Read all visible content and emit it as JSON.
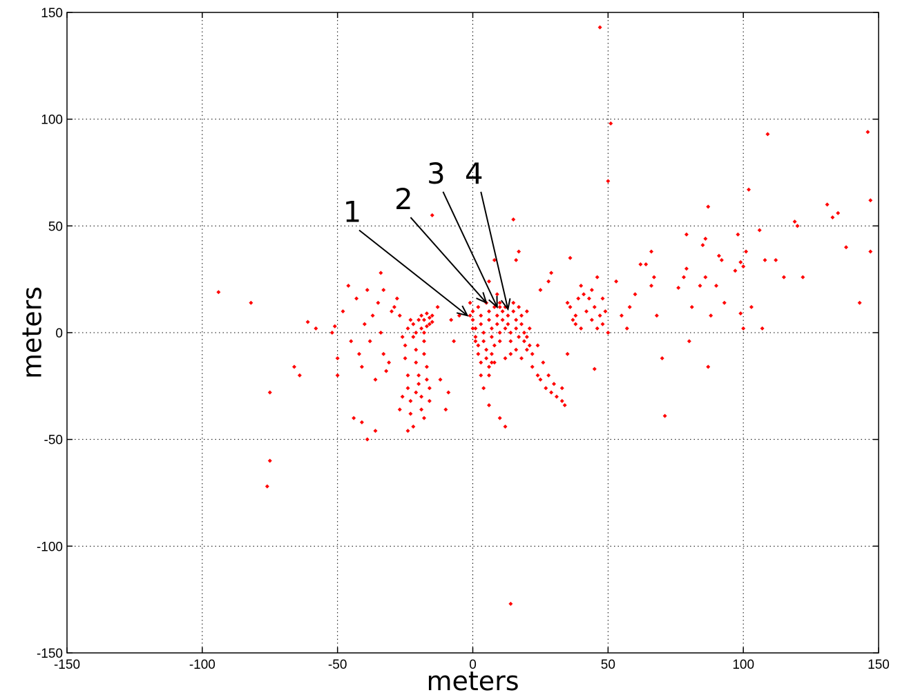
{
  "chart_data": {
    "type": "scatter",
    "xlabel": "meters",
    "ylabel": "meters",
    "xlim": [
      -150,
      150
    ],
    "ylim": [
      -150,
      150
    ],
    "xticks": [
      -150,
      -100,
      -50,
      0,
      50,
      100,
      150
    ],
    "yticks": [
      -150,
      -100,
      -50,
      0,
      50,
      100,
      150
    ],
    "grid": true,
    "marker_color": "#ff0000",
    "series": [
      {
        "points": [
          [
            -94,
            19
          ],
          [
            -82,
            14
          ],
          [
            -61,
            5
          ],
          [
            -58,
            2
          ],
          [
            -52,
            0
          ],
          [
            -51,
            3
          ],
          [
            -50,
            -12
          ],
          [
            -50,
            -20
          ],
          [
            -48,
            10
          ],
          [
            -46,
            22
          ],
          [
            -45,
            -4
          ],
          [
            -44,
            -40
          ],
          [
            -43,
            16
          ],
          [
            -42,
            -10
          ],
          [
            -41,
            -16
          ],
          [
            -40,
            4
          ],
          [
            -39,
            20
          ],
          [
            -38,
            -4
          ],
          [
            -37,
            8
          ],
          [
            -36,
            -22
          ],
          [
            -35,
            14
          ],
          [
            -34,
            28
          ],
          [
            -34,
            0
          ],
          [
            -33,
            -10
          ],
          [
            -33,
            20
          ],
          [
            -32,
            -18
          ],
          [
            -31,
            -14
          ],
          [
            -30,
            10
          ],
          [
            -29,
            12
          ],
          [
            -28,
            16
          ],
          [
            -27,
            8
          ],
          [
            -26,
            -2
          ],
          [
            -41,
            -42
          ],
          [
            -39,
            -50
          ],
          [
            -36,
            -46
          ],
          [
            -66,
            -16
          ],
          [
            -64,
            -20
          ],
          [
            -75,
            -28
          ],
          [
            -75,
            -60
          ],
          [
            -76,
            -72
          ],
          [
            -25,
            -6
          ],
          [
            -25,
            -12
          ],
          [
            -24,
            -20
          ],
          [
            -24,
            -26
          ],
          [
            -23,
            -32
          ],
          [
            -23,
            -38
          ],
          [
            -22,
            -44
          ],
          [
            -21,
            -28
          ],
          [
            -22,
            4
          ],
          [
            -22,
            -2
          ],
          [
            -21,
            -8
          ],
          [
            -21,
            -14
          ],
          [
            -20,
            -20
          ],
          [
            -20,
            -24
          ],
          [
            -19,
            -30
          ],
          [
            -19,
            -36
          ],
          [
            -18,
            -40
          ],
          [
            -19,
            2
          ],
          [
            -18,
            -4
          ],
          [
            -18,
            -10
          ],
          [
            -17,
            -16
          ],
          [
            -17,
            -22
          ],
          [
            -16,
            -26
          ],
          [
            -16,
            -32
          ],
          [
            -20,
            6
          ],
          [
            -19,
            8
          ],
          [
            -18,
            6
          ],
          [
            -17,
            9
          ],
          [
            -16,
            7
          ],
          [
            -15,
            8
          ],
          [
            -16,
            4
          ],
          [
            -17,
            3
          ],
          [
            -15,
            5
          ],
          [
            -18,
            0
          ],
          [
            -21,
            0
          ],
          [
            -23,
            6
          ],
          [
            -24,
            2
          ],
          [
            -26,
            -30
          ],
          [
            -27,
            -36
          ],
          [
            -24,
            -46
          ],
          [
            -12,
            -22
          ],
          [
            -10,
            -36
          ],
          [
            -9,
            -28
          ],
          [
            -13,
            12
          ],
          [
            -8,
            6
          ],
          [
            -7,
            -4
          ],
          [
            -5,
            8
          ],
          [
            -15,
            55
          ],
          [
            -1,
            14
          ],
          [
            0,
            10
          ],
          [
            0,
            6
          ],
          [
            1,
            2
          ],
          [
            1,
            -2
          ],
          [
            2,
            -6
          ],
          [
            2,
            -10
          ],
          [
            3,
            -14
          ],
          [
            -1,
            8
          ],
          [
            0,
            2
          ],
          [
            1,
            -4
          ],
          [
            2,
            12
          ],
          [
            3,
            8
          ],
          [
            3,
            4
          ],
          [
            4,
            0
          ],
          [
            4,
            -4
          ],
          [
            5,
            -8
          ],
          [
            5,
            -12
          ],
          [
            6,
            -16
          ],
          [
            6,
            -20
          ],
          [
            7,
            -14
          ],
          [
            7,
            -10
          ],
          [
            3,
            -20
          ],
          [
            4,
            -26
          ],
          [
            5,
            14
          ],
          [
            6,
            10
          ],
          [
            6,
            6
          ],
          [
            7,
            2
          ],
          [
            7,
            -2
          ],
          [
            8,
            -6
          ],
          [
            8,
            12
          ],
          [
            9,
            8
          ],
          [
            9,
            4
          ],
          [
            10,
            0
          ],
          [
            10,
            -4
          ],
          [
            10,
            14
          ],
          [
            11,
            10
          ],
          [
            11,
            6
          ],
          [
            12,
            2
          ],
          [
            12,
            12
          ],
          [
            13,
            8
          ],
          [
            13,
            4
          ],
          [
            14,
            0
          ],
          [
            14,
            -4
          ],
          [
            15,
            14
          ],
          [
            15,
            10
          ],
          [
            16,
            6
          ],
          [
            16,
            2
          ],
          [
            17,
            -2
          ],
          [
            17,
            12
          ],
          [
            18,
            8
          ],
          [
            18,
            4
          ],
          [
            19,
            0
          ],
          [
            19,
            -4
          ],
          [
            20,
            -8
          ],
          [
            20,
            -2
          ],
          [
            21,
            2
          ],
          [
            21,
            -6
          ],
          [
            22,
            -10
          ],
          [
            20,
            10
          ],
          [
            16,
            -8
          ],
          [
            14,
            -10
          ],
          [
            12,
            -12
          ],
          [
            18,
            -12
          ],
          [
            22,
            -16
          ],
          [
            24,
            -20
          ],
          [
            25,
            -22
          ],
          [
            27,
            -26
          ],
          [
            29,
            -28
          ],
          [
            30,
            -24
          ],
          [
            31,
            -30
          ],
          [
            33,
            -26
          ],
          [
            33,
            -32
          ],
          [
            34,
            -34
          ],
          [
            28,
            -20
          ],
          [
            26,
            -14
          ],
          [
            24,
            -6
          ],
          [
            28,
            24
          ],
          [
            29,
            28
          ],
          [
            25,
            20
          ],
          [
            16,
            34
          ],
          [
            17,
            38
          ],
          [
            15,
            53
          ],
          [
            10,
            12
          ],
          [
            8,
            34
          ],
          [
            6,
            24
          ],
          [
            9,
            18
          ],
          [
            10,
            -40
          ],
          [
            12,
            -44
          ],
          [
            8,
            -14
          ],
          [
            6,
            -34
          ],
          [
            14,
            -127
          ],
          [
            36,
            35
          ],
          [
            38,
            4
          ],
          [
            36,
            12
          ],
          [
            35,
            14
          ],
          [
            37,
            6
          ],
          [
            39,
            16
          ],
          [
            40,
            22
          ],
          [
            41,
            18
          ],
          [
            42,
            10
          ],
          [
            43,
            16
          ],
          [
            44,
            6
          ],
          [
            45,
            12
          ],
          [
            46,
            2
          ],
          [
            47,
            8
          ],
          [
            48,
            4
          ],
          [
            49,
            10
          ],
          [
            50,
            0
          ],
          [
            40,
            2
          ],
          [
            38,
            8
          ],
          [
            44,
            20
          ],
          [
            46,
            26
          ],
          [
            48,
            16
          ],
          [
            35,
            -10
          ],
          [
            45,
            -17
          ],
          [
            47,
            143
          ],
          [
            51,
            98
          ],
          [
            50,
            71
          ],
          [
            53,
            24
          ],
          [
            55,
            8
          ],
          [
            57,
            2
          ],
          [
            58,
            12
          ],
          [
            60,
            18
          ],
          [
            62,
            32
          ],
          [
            64,
            32
          ],
          [
            66,
            38
          ],
          [
            66,
            22
          ],
          [
            67,
            26
          ],
          [
            68,
            8
          ],
          [
            70,
            -12
          ],
          [
            71,
            -39
          ],
          [
            76,
            21
          ],
          [
            78,
            26
          ],
          [
            79,
            46
          ],
          [
            79,
            30
          ],
          [
            80,
            -4
          ],
          [
            81,
            12
          ],
          [
            84,
            22
          ],
          [
            85,
            41
          ],
          [
            86,
            44
          ],
          [
            86,
            26
          ],
          [
            87,
            59
          ],
          [
            87,
            -16
          ],
          [
            88,
            8
          ],
          [
            90,
            22
          ],
          [
            91,
            36
          ],
          [
            92,
            34
          ],
          [
            93,
            14
          ],
          [
            97,
            29
          ],
          [
            98,
            46
          ],
          [
            99,
            9
          ],
          [
            99,
            33
          ],
          [
            100,
            2
          ],
          [
            100,
            31
          ],
          [
            101,
            38
          ],
          [
            102,
            67
          ],
          [
            103,
            12
          ],
          [
            106,
            48
          ],
          [
            107,
            2
          ],
          [
            108,
            34
          ],
          [
            109,
            93
          ],
          [
            112,
            34
          ],
          [
            115,
            26
          ],
          [
            119,
            52
          ],
          [
            120,
            50
          ],
          [
            122,
            26
          ],
          [
            131,
            60
          ],
          [
            133,
            54
          ],
          [
            135,
            56
          ],
          [
            138,
            40
          ],
          [
            143,
            14
          ],
          [
            146,
            94
          ],
          [
            147,
            62
          ],
          [
            147,
            38
          ]
        ]
      }
    ],
    "annotations": [
      {
        "label": "1",
        "from": [
          -42,
          48
        ],
        "to": [
          -2,
          8
        ]
      },
      {
        "label": "2",
        "from": [
          -23,
          54
        ],
        "to": [
          5,
          14
        ]
      },
      {
        "label": "3",
        "from": [
          -11,
          66
        ],
        "to": [
          9,
          12
        ]
      },
      {
        "label": "4",
        "from": [
          3,
          66
        ],
        "to": [
          13,
          11
        ]
      }
    ]
  }
}
